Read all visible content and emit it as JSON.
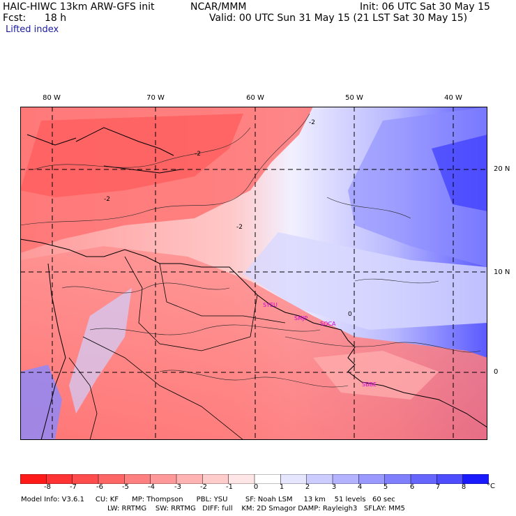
{
  "header": {
    "model_title": "HAIC-HIWC 13km ARW-GFS init",
    "org": "NCAR/MMM",
    "init": "Init: 06 UTC Sat 30 May 15",
    "fcst_label": "Fcst:",
    "fcst_value": "18 h",
    "valid": "Valid: 00 UTC Sun 31 May 15 (21 LST Sat 30 May 15)",
    "field": "Lifted index"
  },
  "map": {
    "longitude_labels": [
      "80 W",
      "70 W",
      "60 W",
      "50 W",
      "40 W"
    ],
    "latitude_labels": [
      "20 N",
      "10 N",
      "0"
    ],
    "stations": [
      "SYEU",
      "SMJP",
      "SOCA",
      "SBBE"
    ],
    "contour_labels": [
      "-2",
      "-2",
      "-2",
      "-2",
      "0"
    ]
  },
  "colorbar": {
    "labels": [
      "-8",
      "-7",
      "-6",
      "-5",
      "-4",
      "-3",
      "-2",
      "-1",
      "0",
      "1",
      "2",
      "3",
      "4",
      "5",
      "6",
      "7",
      "8"
    ],
    "unit": "°C",
    "colors": [
      "#ff1a1a",
      "#ff3333",
      "#ff4d4d",
      "#ff6666",
      "#ff8080",
      "#ff9999",
      "#ffb3b3",
      "#ffcccc",
      "#ffe6e6",
      "#ffffff",
      "#e6e6ff",
      "#ccccff",
      "#b3b3ff",
      "#9999ff",
      "#8080ff",
      "#6666ff",
      "#4d4dff",
      "#1a1aff"
    ]
  },
  "footer": {
    "line1": "Model Info: V3.6.1     CU: KF      MP: Thompson      PBL: YSU        SF: Noah LSM     13 km    51 levels   60 sec",
    "line2": "LW: RRTMG    SW: RRTMG   DIFF: full    KM: 2D Smagor DAMP: Rayleigh3   SFLAY: MM5"
  }
}
